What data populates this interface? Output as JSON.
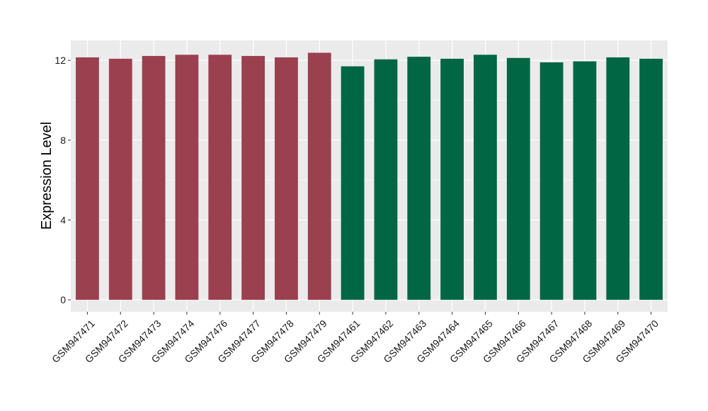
{
  "chart_data": {
    "type": "bar",
    "title": "",
    "xlabel": "",
    "ylabel": "Expression Level",
    "ylim": [
      -0.6,
      13.0
    ],
    "yticks": [
      0,
      4,
      8,
      12
    ],
    "grid": true,
    "legend": "none",
    "categories": [
      "GSM947471",
      "GSM947472",
      "GSM947473",
      "GSM947474",
      "GSM947476",
      "GSM947477",
      "GSM947478",
      "GSM947479",
      "GSM947461",
      "GSM947462",
      "GSM947463",
      "GSM947464",
      "GSM947465",
      "GSM947466",
      "GSM947467",
      "GSM947468",
      "GSM947469",
      "GSM947470"
    ],
    "values": [
      12.15,
      12.08,
      12.22,
      12.28,
      12.28,
      12.22,
      12.15,
      12.38,
      11.7,
      12.05,
      12.18,
      12.08,
      12.28,
      12.12,
      11.9,
      11.95,
      12.15,
      12.08
    ],
    "bar_colors": [
      "#9b404f",
      "#9b404f",
      "#9b404f",
      "#9b404f",
      "#9b404f",
      "#9b404f",
      "#9b404f",
      "#9b404f",
      "#006644",
      "#006644",
      "#006644",
      "#006644",
      "#006644",
      "#006644",
      "#006644",
      "#006644",
      "#006644",
      "#006644"
    ],
    "panel_color": "#ebebeb",
    "grid_color": "#ffffff"
  }
}
